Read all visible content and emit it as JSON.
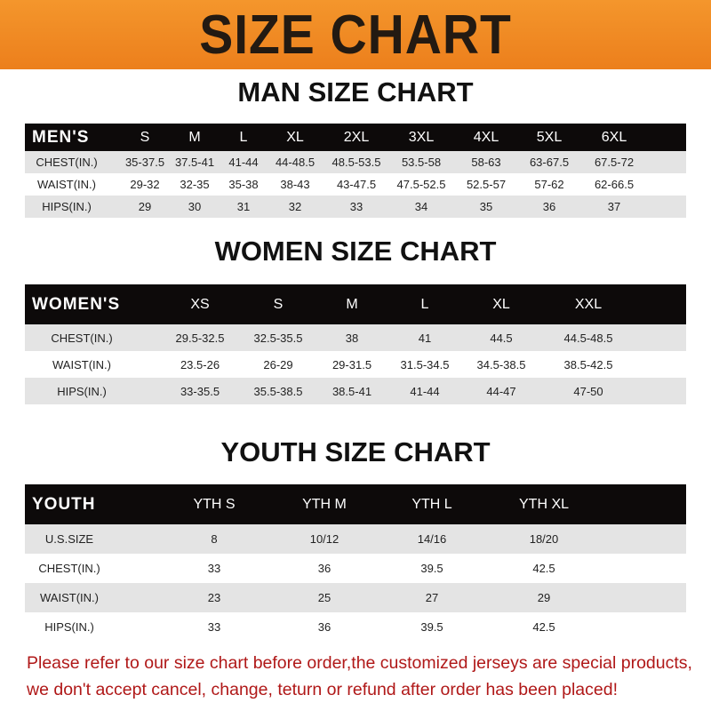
{
  "banner": {
    "title": "SIZE CHART",
    "color": "#f08a24"
  },
  "men": {
    "title": "MAN SIZE CHART",
    "header": [
      "MEN'S",
      "S",
      "M",
      "L",
      "XL",
      "2XL",
      "3XL",
      "4XL",
      "5XL",
      "6XL"
    ],
    "rows": [
      [
        "CHEST(IN.)",
        "35-37.5",
        "37.5-41",
        "41-44",
        "44-48.5",
        "48.5-53.5",
        "53.5-58",
        "58-63",
        "63-67.5",
        "67.5-72"
      ],
      [
        "WAIST(IN.)",
        "29-32",
        "32-35",
        "35-38",
        "38-43",
        "43-47.5",
        "47.5-52.5",
        "52.5-57",
        "57-62",
        "62-66.5"
      ],
      [
        "HIPS(IN.)",
        "29",
        "30",
        "31",
        "32",
        "33",
        "34",
        "35",
        "36",
        "37"
      ]
    ]
  },
  "women": {
    "title": "WOMEN SIZE CHART",
    "header": [
      "WOMEN'S",
      "XS",
      "S",
      "M",
      "L",
      "XL",
      "XXL"
    ],
    "rows": [
      [
        "CHEST(IN.)",
        "29.5-32.5",
        "32.5-35.5",
        "38",
        "41",
        "44.5",
        "44.5-48.5"
      ],
      [
        "WAIST(IN.)",
        "23.5-26",
        "26-29",
        "29-31.5",
        "31.5-34.5",
        "34.5-38.5",
        "38.5-42.5"
      ],
      [
        "HIPS(IN.)",
        "33-35.5",
        "35.5-38.5",
        "38.5-41",
        "41-44",
        "44-47",
        "47-50"
      ]
    ]
  },
  "youth": {
    "title": "YOUTH SIZE CHART",
    "header": [
      "YOUTH",
      "YTH S",
      "YTH M",
      "YTH L",
      "YTH XL"
    ],
    "rows": [
      [
        "U.S.SIZE",
        "8",
        "10/12",
        "14/16",
        "18/20"
      ],
      [
        "CHEST(IN.)",
        "33",
        "36",
        "39.5",
        "42.5"
      ],
      [
        "WAIST(IN.)",
        "23",
        "25",
        "27",
        "29"
      ],
      [
        "HIPS(IN.)",
        "33",
        "36",
        "39.5",
        "42.5"
      ]
    ]
  },
  "notice": {
    "line1": "Please refer to our size chart before order,the customized jerseys are special products,",
    "line2": "we don't accept cancel, change, teturn or refund after order has been placed!",
    "color": "#b01818"
  }
}
